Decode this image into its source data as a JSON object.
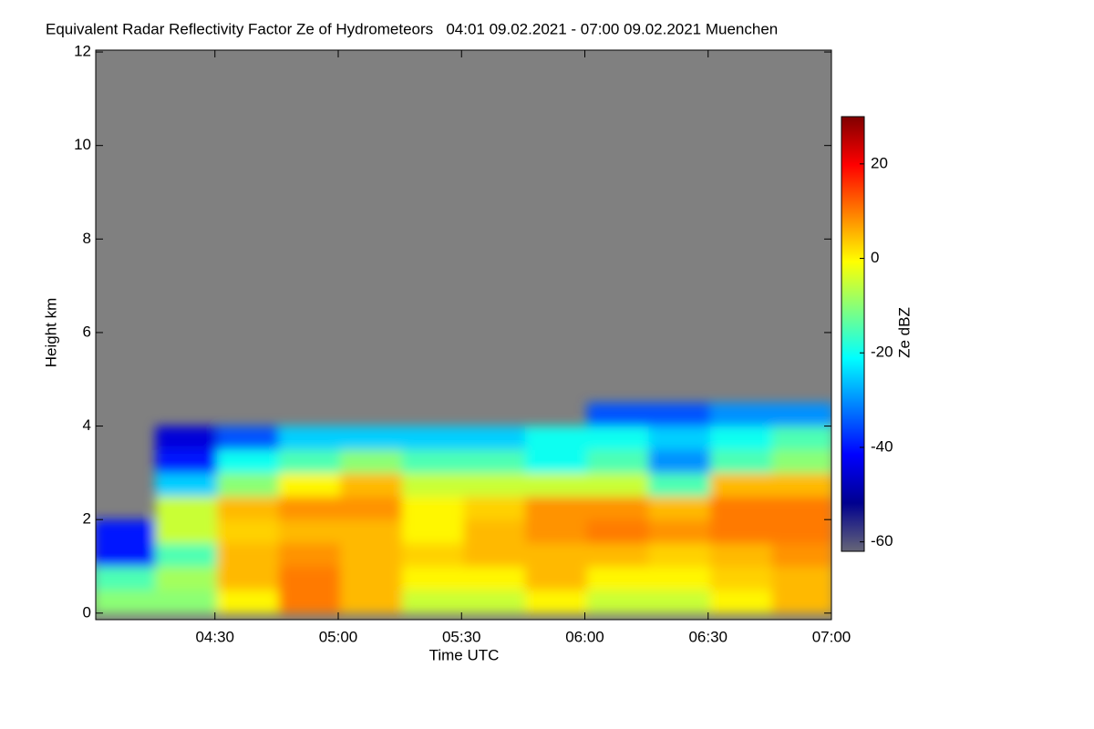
{
  "chart_data": {
    "type": "heatmap",
    "title": "Equivalent Radar Reflectivity Factor Ze of Hydrometeors   04:01 09.02.2021 - 07:00 09.02.2021 Muenchen",
    "x_label": "Time UTC",
    "y_label": "Height km",
    "colorbar_label": "Ze dBZ",
    "xlim": [
      241,
      420
    ],
    "xticks": [
      {
        "value": 270,
        "label": "04:30"
      },
      {
        "value": 300,
        "label": "05:00"
      },
      {
        "value": 330,
        "label": "05:30"
      },
      {
        "value": 360,
        "label": "06:00"
      },
      {
        "value": 390,
        "label": "06:30"
      },
      {
        "value": 420,
        "label": "07:00"
      }
    ],
    "ylim": [
      -0.14,
      12.04
    ],
    "yticks": [
      0,
      2,
      4,
      6,
      8,
      10,
      12
    ],
    "zlim": [
      -62,
      30
    ],
    "zticks": [
      -60,
      -40,
      -20,
      0,
      20
    ],
    "colormap": [
      "#666677",
      "#00008f",
      "#0000ff",
      "#0080ff",
      "#00ffff",
      "#80ff80",
      "#ffff00",
      "#ff8000",
      "#ff0000",
      "#800000"
    ],
    "background": "#808080",
    "x": [
      248,
      263,
      278,
      293,
      308,
      323,
      338,
      353,
      368,
      383,
      398,
      413
    ],
    "y": [
      0.25,
      0.75,
      1.25,
      1.75,
      2.25,
      2.75,
      3.25,
      3.75,
      4.25
    ],
    "z": [
      [
        -10,
        -10,
        0,
        10,
        5,
        -5,
        -5,
        0,
        -5,
        -5,
        0,
        5
      ],
      [
        -15,
        -8,
        5,
        10,
        5,
        0,
        0,
        5,
        0,
        0,
        3,
        5
      ],
      [
        -40,
        -15,
        5,
        8,
        5,
        3,
        5,
        5,
        5,
        3,
        5,
        8
      ],
      [
        -40,
        -5,
        3,
        5,
        5,
        0,
        5,
        8,
        10,
        8,
        10,
        10
      ],
      [
        null,
        -5,
        5,
        8,
        8,
        0,
        3,
        8,
        8,
        5,
        10,
        10
      ],
      [
        null,
        -25,
        -10,
        0,
        5,
        -5,
        -5,
        -5,
        -5,
        -15,
        5,
        5
      ],
      [
        null,
        -40,
        -20,
        -15,
        -10,
        -15,
        -15,
        -20,
        -15,
        -30,
        -15,
        -10
      ],
      [
        null,
        -45,
        -35,
        -25,
        -25,
        -25,
        -25,
        -20,
        -20,
        -25,
        -20,
        -15
      ],
      [
        null,
        null,
        null,
        null,
        null,
        null,
        null,
        null,
        -35,
        -35,
        -30,
        -30
      ]
    ]
  }
}
